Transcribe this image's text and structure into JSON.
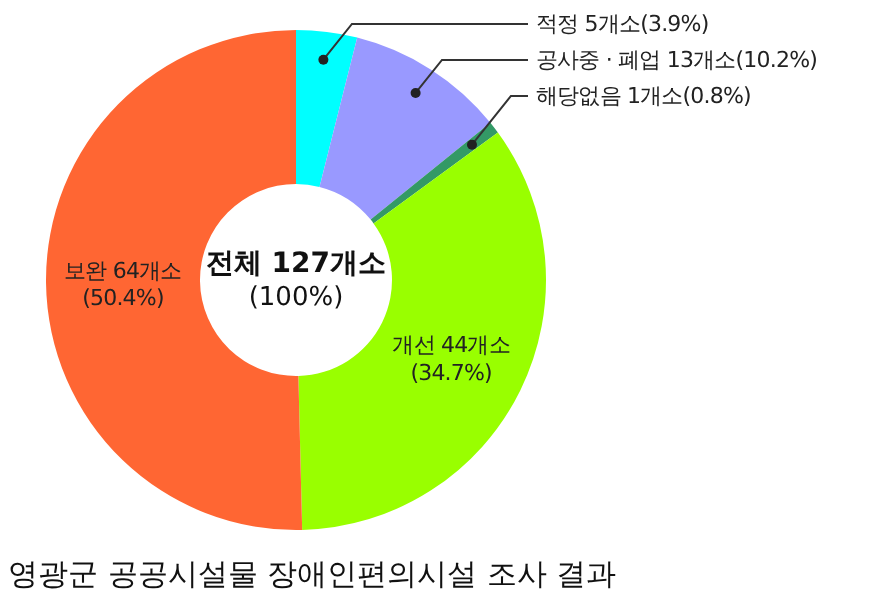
{
  "chart_data": {
    "type": "donut",
    "title": "영광군 공공시설물 장애인편의시설 조사 결과",
    "categories": [
      "적정",
      "공사중 · 폐업",
      "해당없음",
      "개선",
      "보완"
    ],
    "values": [
      5,
      13,
      1,
      44,
      64
    ],
    "value_labels": [
      "5개소(3.9%)",
      "13개소(10.2%)",
      "1개소(0.8%)",
      "44개소(34.7%)",
      "64개소(50.4%)"
    ],
    "colors": [
      "#00ffff",
      "#9999ff",
      "#339966",
      "#99ff00",
      "#ff6633"
    ],
    "annotations": [
      "전체 127개소",
      "(100%)"
    ],
    "legend": false
  }
}
